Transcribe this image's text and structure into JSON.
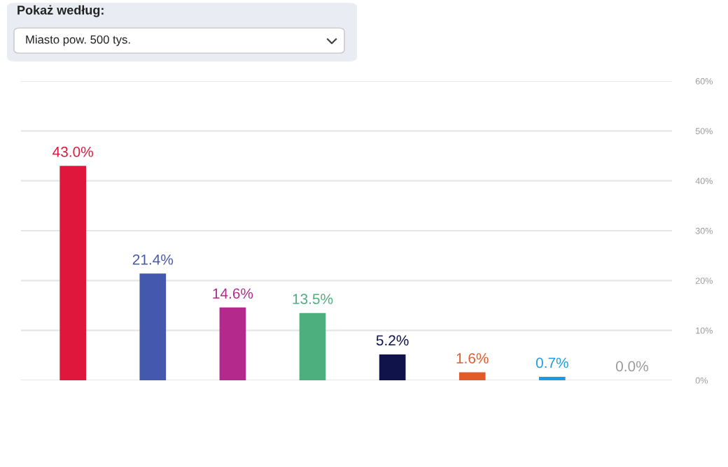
{
  "chart_data": {
    "type": "bar",
    "title": "Pokaż według:",
    "subtitle": "Miasto pow. 500 tys.",
    "categories": [
      null,
      null,
      null,
      null,
      null,
      null,
      null,
      null
    ],
    "values": [
      43.0,
      21.4,
      14.6,
      13.5,
      5.2,
      1.6,
      0.7,
      0.0
    ],
    "colors": [
      "#e0173d",
      "#4458ad",
      "#b32a8c",
      "#4caf7d",
      "#10124a",
      "#e05a2a",
      "#1e9be0",
      "#999999"
    ],
    "value_labels": [
      "43.0%",
      "21.4%",
      "14.6%",
      "13.5%",
      "5.2%",
      "1.6%",
      "0.7%",
      "0.0%"
    ],
    "ylim": [
      0,
      60
    ],
    "yticks": [
      {
        "value": 0,
        "label": "0%"
      },
      {
        "value": 10,
        "label": "10%"
      },
      {
        "value": 20,
        "label": "20%"
      },
      {
        "value": 30,
        "label": "30%"
      },
      {
        "value": 40,
        "label": "40%"
      },
      {
        "value": 50,
        "label": "50%"
      },
      {
        "value": 60,
        "label": "60%"
      }
    ],
    "grid": "y",
    "legend": false
  }
}
